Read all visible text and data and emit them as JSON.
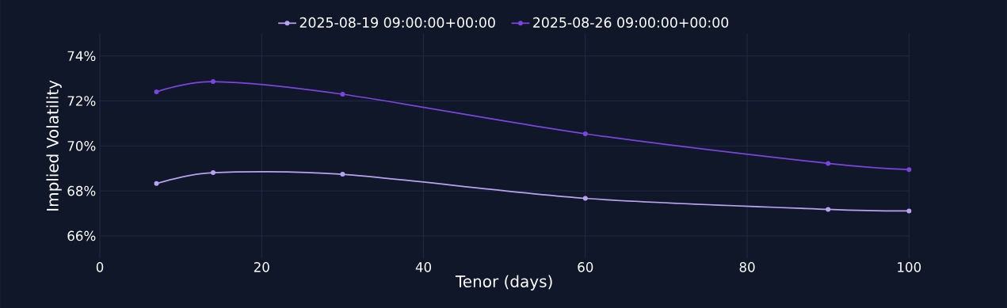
{
  "chart_data": {
    "type": "line",
    "xlabel": "Tenor (days)",
    "ylabel": "Implied Volatility",
    "series": [
      {
        "name": "2025-08-19 09:00:00+00:00",
        "color": "#b9a3f0",
        "x": [
          7,
          14,
          30,
          60,
          90,
          100
        ],
        "values": [
          68.33,
          68.81,
          68.74,
          67.67,
          67.18,
          67.11
        ]
      },
      {
        "name": "2025-08-26 09:00:00+00:00",
        "color": "#7b45e0",
        "x": [
          7,
          14,
          30,
          60,
          90,
          100
        ],
        "values": [
          72.41,
          72.86,
          72.3,
          70.54,
          69.22,
          68.95
        ]
      }
    ],
    "xlim": [
      0,
      100
    ],
    "xticks": [
      0,
      20,
      40,
      60,
      80,
      100
    ],
    "ylim": [
      65,
      75
    ],
    "yticks": [
      {
        "value": 66,
        "label": "66%"
      },
      {
        "value": 68,
        "label": "68%"
      },
      {
        "value": 70,
        "label": "70%"
      },
      {
        "value": 72,
        "label": "72%"
      },
      {
        "value": 74,
        "label": "74%"
      }
    ],
    "grid": true,
    "legend": "top",
    "marker": "circle",
    "line_style": "solid"
  }
}
